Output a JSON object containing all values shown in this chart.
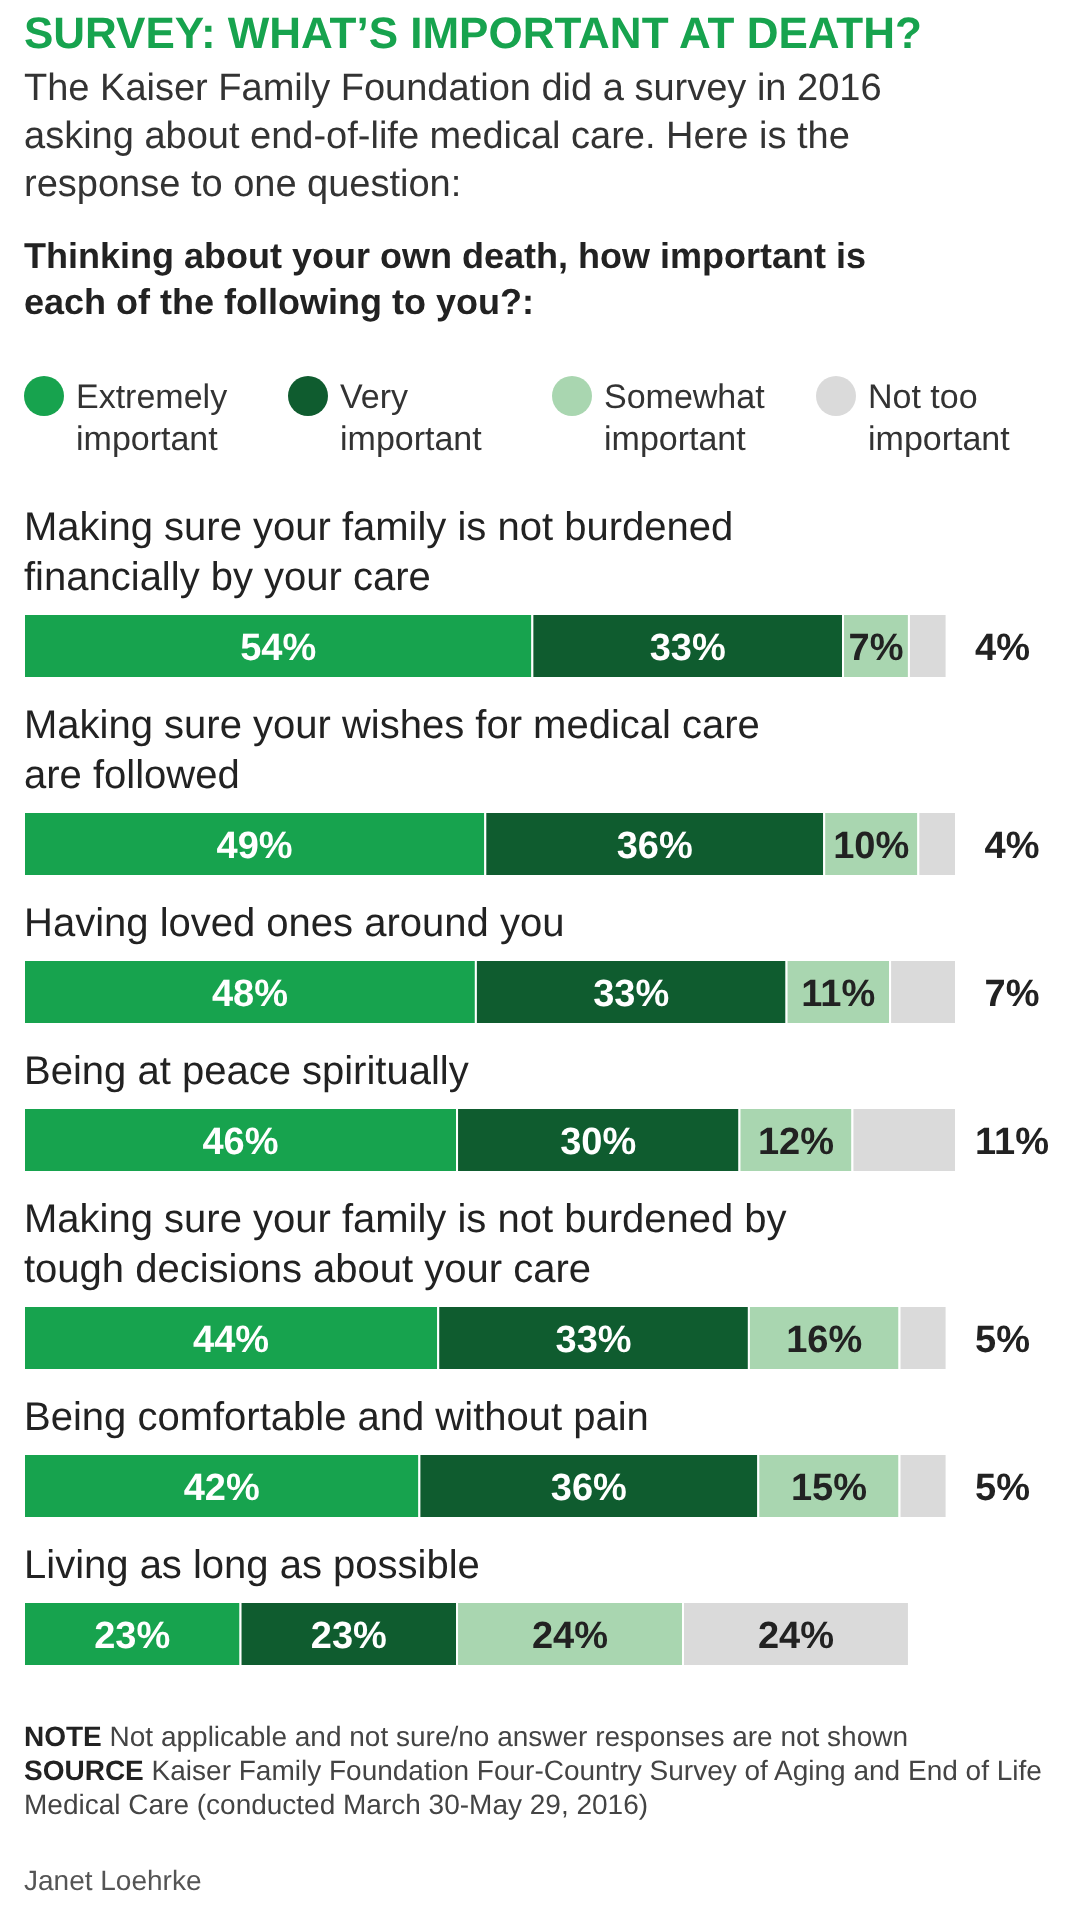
{
  "chart_data": {
    "type": "bar",
    "orientation": "horizontal",
    "stacked": true,
    "legend": "top",
    "title": "SURVEY: WHAT’S IMPORTANT AT DEATH?",
    "subtitle": "The Kaiser Family Foundation did a survey in 2016 asking about end-of-life medical care. Here is the response to one question:",
    "legend_title": "Thinking about your own death, how important is each of the following to you?:",
    "categories": [
      "Making sure your family is not burdened financially by your care",
      "Making sure your wishes for medical care are followed",
      "Having loved ones around you",
      "Being at peace spiritually",
      "Making sure your family is not burdened by tough decisions about your care",
      "Being comfortable and without pain",
      "Living as long as possible"
    ],
    "series": [
      {
        "name": "Extremely important",
        "color": "#17a34e",
        "values": [
          54,
          49,
          48,
          46,
          44,
          42,
          23
        ],
        "value_labels": [
          "54%",
          "49%",
          "48%",
          "46%",
          "44%",
          "42%",
          "23%"
        ]
      },
      {
        "name": "Very important",
        "color": "#0f5c2f",
        "values": [
          33,
          36,
          33,
          30,
          33,
          36,
          23
        ],
        "value_labels": [
          "33%",
          "36%",
          "33%",
          "30%",
          "33%",
          "36%",
          "23%"
        ]
      },
      {
        "name": "Somewhat important",
        "color": "#a9d6b0",
        "values": [
          7,
          10,
          11,
          12,
          16,
          15,
          24
        ],
        "value_labels": [
          "7%",
          "10%",
          "11%",
          "12%",
          "16%",
          "15%",
          "24%"
        ]
      },
      {
        "name": "Not too important",
        "color": "#dadada",
        "values": [
          4,
          4,
          7,
          11,
          5,
          5,
          24
        ],
        "value_labels": [
          "4%",
          "4%",
          "7%",
          "11%",
          "5%",
          "5%",
          "24%"
        ]
      }
    ],
    "annotations": [
      "NOTE Not applicable and not sure/no answer responses are not shown",
      "SOURCE Kaiser Family Foundation Four-Country Survey of Aging and End of Life Medical Care (conducted March 30-May 29, 2016)",
      "Janet Loehrke"
    ]
  }
}
